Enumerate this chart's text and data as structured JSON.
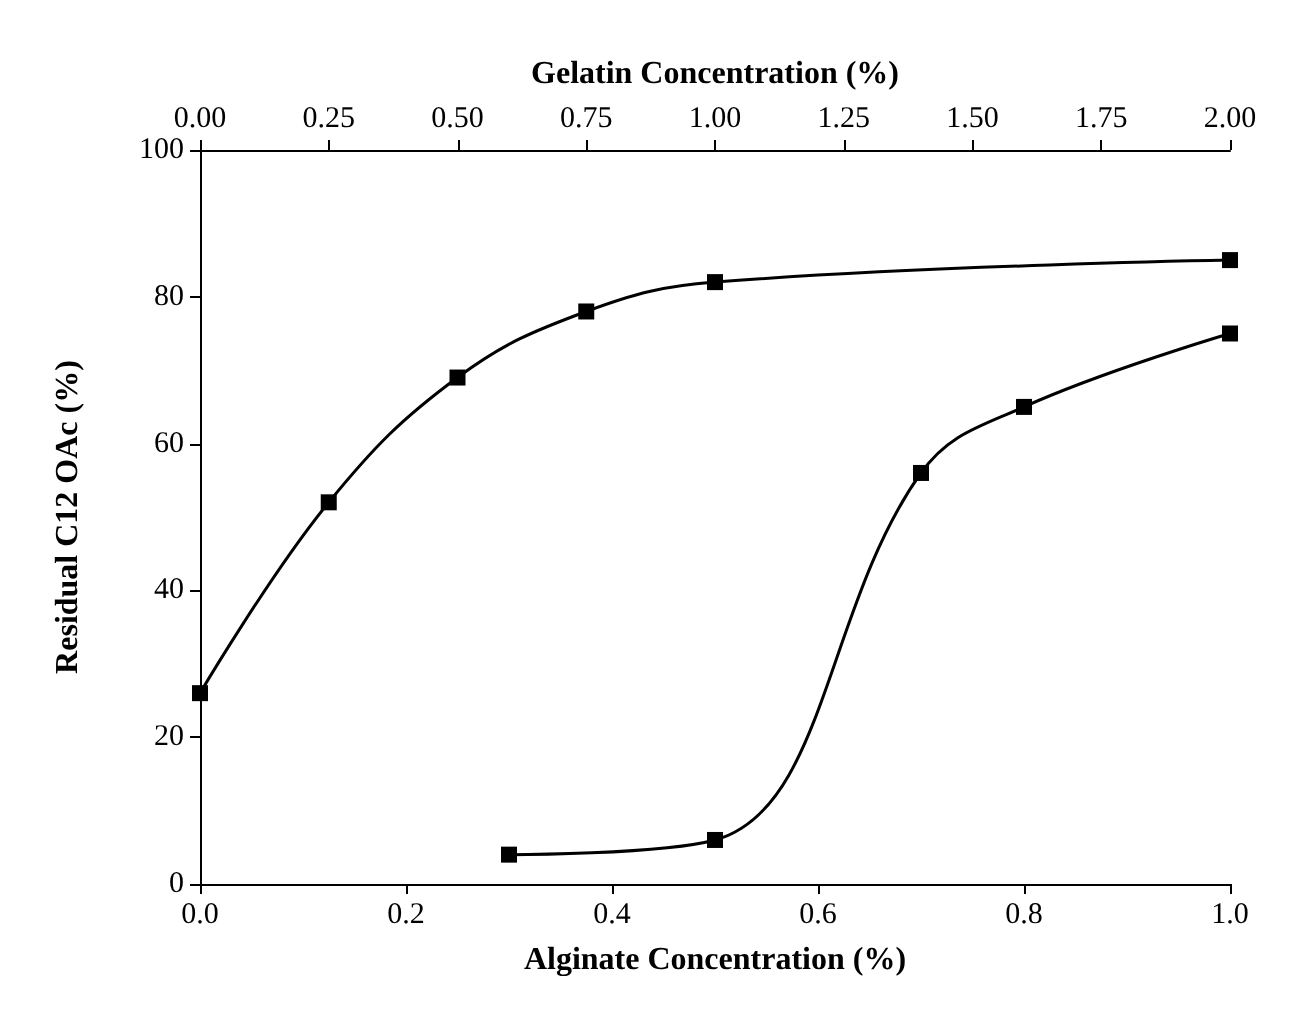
{
  "chart_data": {
    "type": "line",
    "xlabel": "Alginate Concentration (%)",
    "x2label": "Gelatin Concentration (%)",
    "ylabel": "Residual C12 OAc (%)",
    "xlim": [
      0,
      1
    ],
    "xticks": [
      {
        "value": 0,
        "label": "0.0"
      },
      {
        "value": 0.2,
        "label": "0.2"
      },
      {
        "value": 0.4,
        "label": "0.4"
      },
      {
        "value": 0.6,
        "label": "0.6"
      },
      {
        "value": 0.8,
        "label": "0.8"
      },
      {
        "value": 1,
        "label": "1.0"
      }
    ],
    "x2lim": [
      0,
      2
    ],
    "x2ticks": [
      {
        "value": 0,
        "label": "0.00"
      },
      {
        "value": 0.25,
        "label": "0.25"
      },
      {
        "value": 0.5,
        "label": "0.50"
      },
      {
        "value": 0.75,
        "label": "0.75"
      },
      {
        "value": 1,
        "label": "1.00"
      },
      {
        "value": 1.25,
        "label": "1.25"
      },
      {
        "value": 1.5,
        "label": "1.50"
      },
      {
        "value": 1.75,
        "label": "1.75"
      },
      {
        "value": 2,
        "label": "2.00"
      }
    ],
    "ylim": [
      0,
      100
    ],
    "yticks": [
      0,
      20,
      40,
      60,
      80,
      100
    ],
    "grid": false,
    "marker": "square",
    "line_style": "solid",
    "series": [
      {
        "color": "#000000",
        "axis": "x2",
        "x": [
          0,
          0.25,
          0.5,
          0.75,
          1,
          2
        ],
        "values": [
          26,
          52,
          69,
          78,
          82,
          85
        ]
      },
      {
        "color": "#000000",
        "x": [
          0.3,
          0.5,
          0.7,
          0.8,
          1
        ],
        "values": [
          4,
          6,
          56,
          65,
          75
        ]
      }
    ]
  }
}
